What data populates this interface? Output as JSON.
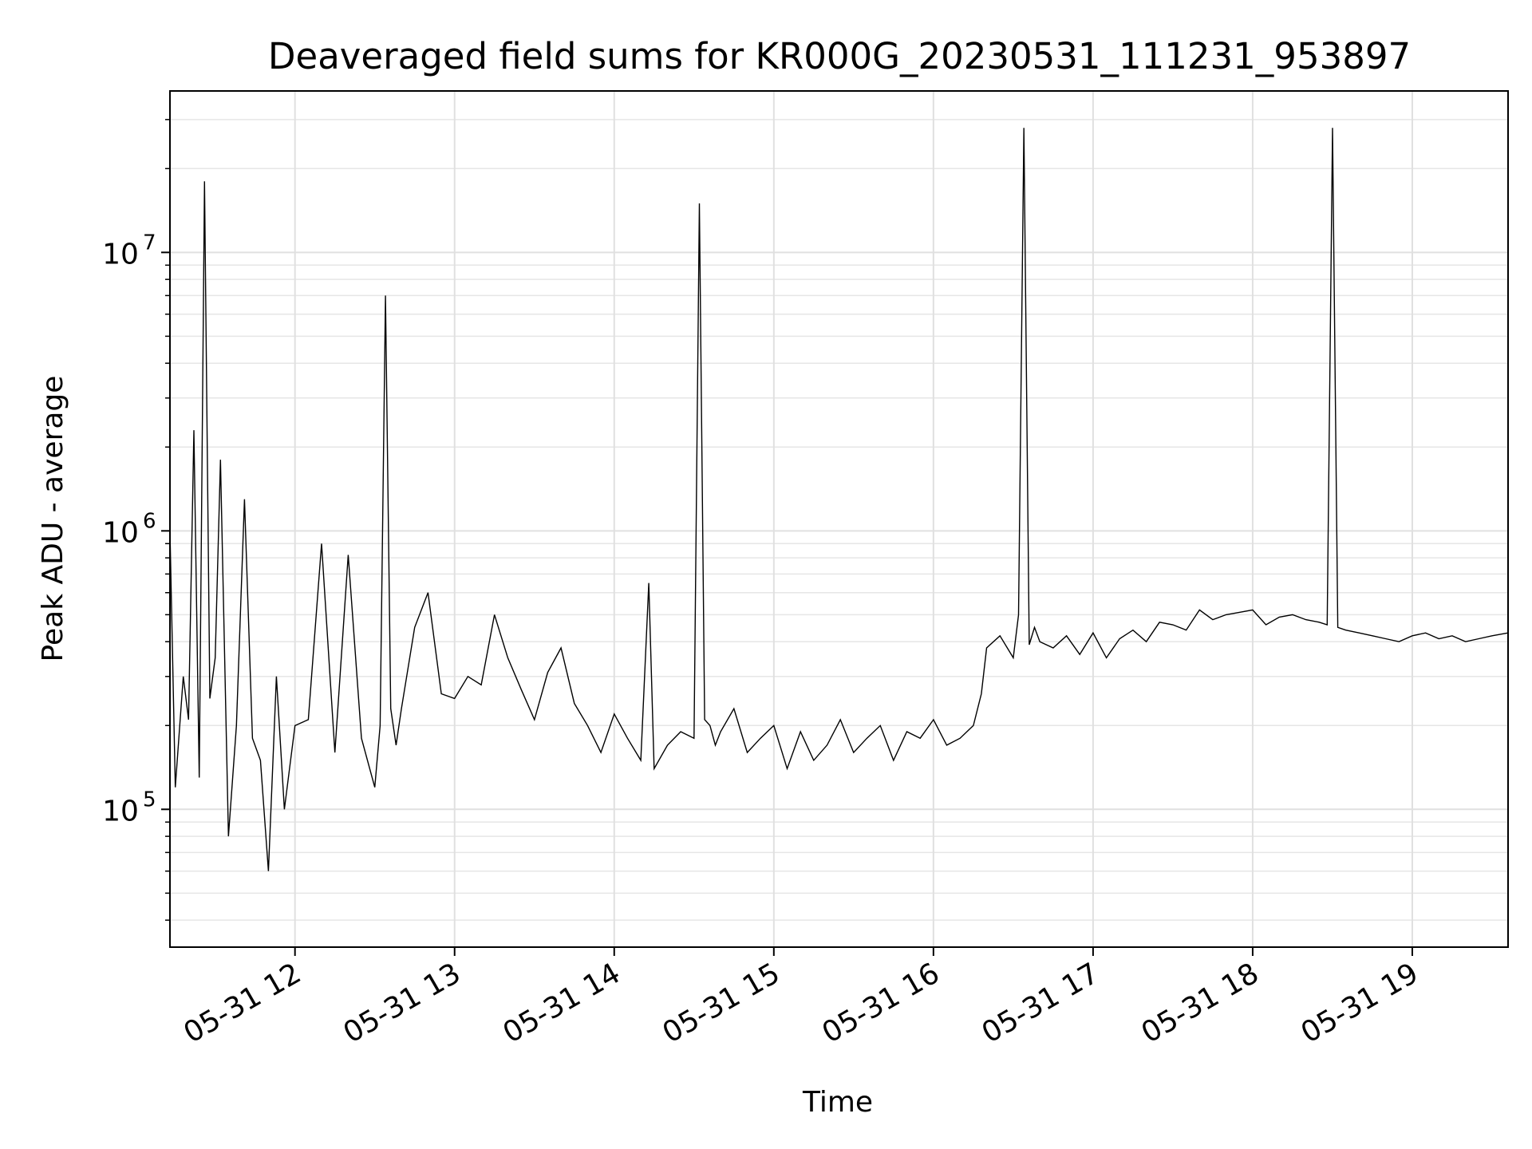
{
  "chart_data": {
    "type": "line",
    "title": "Deaveraged field sums for KR000G_20230531_111231_953897",
    "xlabel": "Time",
    "ylabel": "Peak ADU - average",
    "yscale": "log",
    "grid": true,
    "grid_minor": true,
    "xlim": [
      "2023-05-31 11:13",
      "2023-05-31 19:36"
    ],
    "ylim": [
      32000,
      38000000
    ],
    "x_ticks": [
      {
        "value": "2023-05-31 12:00",
        "label": "05-31 12"
      },
      {
        "value": "2023-05-31 13:00",
        "label": "05-31 13"
      },
      {
        "value": "2023-05-31 14:00",
        "label": "05-31 14"
      },
      {
        "value": "2023-05-31 15:00",
        "label": "05-31 15"
      },
      {
        "value": "2023-05-31 16:00",
        "label": "05-31 16"
      },
      {
        "value": "2023-05-31 17:00",
        "label": "05-31 17"
      },
      {
        "value": "2023-05-31 18:00",
        "label": "05-31 18"
      },
      {
        "value": "2023-05-31 19:00",
        "label": "05-31 19"
      }
    ],
    "y_ticks": [
      {
        "value": 100000,
        "base": "10",
        "exp": "5"
      },
      {
        "value": 1000000,
        "base": "10",
        "exp": "6"
      },
      {
        "value": 10000000,
        "base": "10",
        "exp": "7"
      }
    ],
    "line_color": "#000000",
    "series": [
      {
        "x": [
          "2023-05-31 11:13",
          "2023-05-31 11:15",
          "2023-05-31 11:18",
          "2023-05-31 11:20",
          "2023-05-31 11:22",
          "2023-05-31 11:24",
          "2023-05-31 11:26",
          "2023-05-31 11:28",
          "2023-05-31 11:30",
          "2023-05-31 11:32",
          "2023-05-31 11:35",
          "2023-05-31 11:38",
          "2023-05-31 11:41",
          "2023-05-31 11:44",
          "2023-05-31 11:47",
          "2023-05-31 11:50",
          "2023-05-31 11:53",
          "2023-05-31 11:56",
          "2023-05-31 12:00",
          "2023-05-31 12:05",
          "2023-05-31 12:10",
          "2023-05-31 12:15",
          "2023-05-31 12:20",
          "2023-05-31 12:25",
          "2023-05-31 12:30",
          "2023-05-31 12:32",
          "2023-05-31 12:34",
          "2023-05-31 12:36",
          "2023-05-31 12:38",
          "2023-05-31 12:40",
          "2023-05-31 12:45",
          "2023-05-31 12:50",
          "2023-05-31 12:55",
          "2023-05-31 13:00",
          "2023-05-31 13:05",
          "2023-05-31 13:10",
          "2023-05-31 13:15",
          "2023-05-31 13:20",
          "2023-05-31 13:25",
          "2023-05-31 13:30",
          "2023-05-31 13:35",
          "2023-05-31 13:40",
          "2023-05-31 13:45",
          "2023-05-31 13:50",
          "2023-05-31 13:55",
          "2023-05-31 14:00",
          "2023-05-31 14:05",
          "2023-05-31 14:10",
          "2023-05-31 14:13",
          "2023-05-31 14:15",
          "2023-05-31 14:20",
          "2023-05-31 14:25",
          "2023-05-31 14:30",
          "2023-05-31 14:32",
          "2023-05-31 14:34",
          "2023-05-31 14:36",
          "2023-05-31 14:38",
          "2023-05-31 14:40",
          "2023-05-31 14:45",
          "2023-05-31 14:50",
          "2023-05-31 14:55",
          "2023-05-31 15:00",
          "2023-05-31 15:05",
          "2023-05-31 15:10",
          "2023-05-31 15:15",
          "2023-05-31 15:20",
          "2023-05-31 15:25",
          "2023-05-31 15:30",
          "2023-05-31 15:35",
          "2023-05-31 15:40",
          "2023-05-31 15:45",
          "2023-05-31 15:50",
          "2023-05-31 15:55",
          "2023-05-31 16:00",
          "2023-05-31 16:05",
          "2023-05-31 16:10",
          "2023-05-31 16:15",
          "2023-05-31 16:18",
          "2023-05-31 16:20",
          "2023-05-31 16:25",
          "2023-05-31 16:30",
          "2023-05-31 16:32",
          "2023-05-31 16:34",
          "2023-05-31 16:36",
          "2023-05-31 16:38",
          "2023-05-31 16:40",
          "2023-05-31 16:45",
          "2023-05-31 16:50",
          "2023-05-31 16:55",
          "2023-05-31 17:00",
          "2023-05-31 17:05",
          "2023-05-31 17:10",
          "2023-05-31 17:15",
          "2023-05-31 17:20",
          "2023-05-31 17:25",
          "2023-05-31 17:30",
          "2023-05-31 17:35",
          "2023-05-31 17:40",
          "2023-05-31 17:45",
          "2023-05-31 17:50",
          "2023-05-31 17:55",
          "2023-05-31 18:00",
          "2023-05-31 18:05",
          "2023-05-31 18:10",
          "2023-05-31 18:15",
          "2023-05-31 18:20",
          "2023-05-31 18:25",
          "2023-05-31 18:28",
          "2023-05-31 18:30",
          "2023-05-31 18:32",
          "2023-05-31 18:35",
          "2023-05-31 18:40",
          "2023-05-31 18:45",
          "2023-05-31 18:50",
          "2023-05-31 18:55",
          "2023-05-31 19:00",
          "2023-05-31 19:05",
          "2023-05-31 19:10",
          "2023-05-31 19:15",
          "2023-05-31 19:20",
          "2023-05-31 19:25",
          "2023-05-31 19:30",
          "2023-05-31 19:36"
        ],
        "values": [
          1000000,
          120000,
          300000,
          210000,
          2300000,
          130000,
          18000000,
          250000,
          350000,
          1800000,
          80000,
          200000,
          1300000,
          180000,
          150000,
          60000,
          300000,
          100000,
          200000,
          210000,
          900000,
          160000,
          820000,
          180000,
          120000,
          200000,
          7000000,
          230000,
          170000,
          230000,
          450000,
          600000,
          260000,
          250000,
          300000,
          280000,
          500000,
          350000,
          270000,
          210000,
          310000,
          380000,
          240000,
          200000,
          160000,
          220000,
          180000,
          150000,
          650000,
          140000,
          170000,
          190000,
          180000,
          15000000,
          210000,
          200000,
          170000,
          190000,
          230000,
          160000,
          180000,
          200000,
          140000,
          190000,
          150000,
          170000,
          210000,
          160000,
          180000,
          200000,
          150000,
          190000,
          180000,
          210000,
          170000,
          180000,
          200000,
          260000,
          380000,
          420000,
          350000,
          500000,
          28000000,
          390000,
          450000,
          400000,
          380000,
          420000,
          360000,
          430000,
          350000,
          410000,
          440000,
          400000,
          470000,
          460000,
          440000,
          520000,
          480000,
          500000,
          510000,
          520000,
          460000,
          490000,
          500000,
          480000,
          470000,
          460000,
          28000000,
          450000,
          440000,
          430000,
          420000,
          410000,
          400000,
          420000,
          430000,
          410000,
          420000,
          400000,
          410000,
          420000,
          430000
        ]
      }
    ]
  }
}
